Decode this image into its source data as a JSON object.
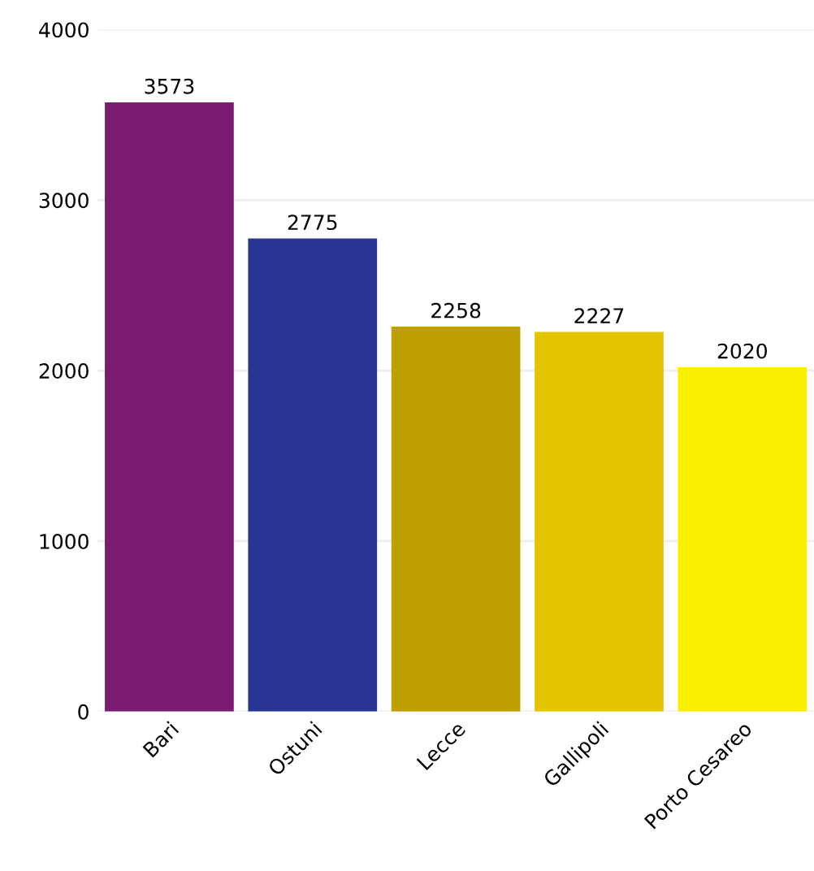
{
  "chart_data": {
    "type": "bar",
    "categories": [
      "Bari",
      "Ostuni",
      "Lecce",
      "Gallipoli",
      "Porto Cesareo"
    ],
    "values": [
      3573,
      2775,
      2258,
      2227,
      2020
    ],
    "colors": [
      "#7a1d72",
      "#283593",
      "#bf9f00",
      "#e3c500",
      "#f8f000"
    ],
    "ylim": [
      0,
      4000
    ],
    "yticks": [
      0,
      1000,
      2000,
      3000,
      4000
    ],
    "grid": "y",
    "data_labels": true
  }
}
